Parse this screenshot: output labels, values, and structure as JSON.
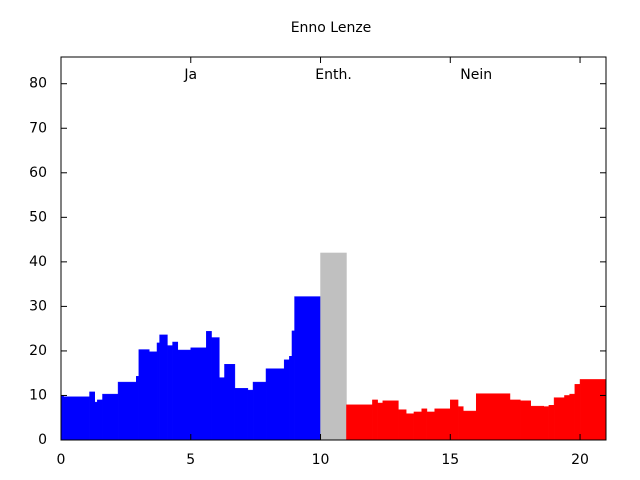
{
  "chart_data": {
    "type": "step-area",
    "title": "Enno Lenze",
    "xlim": [
      0,
      21
    ],
    "ylim": [
      0,
      86
    ],
    "xticks": [
      0,
      5,
      10,
      15,
      20
    ],
    "yticks": [
      0,
      10,
      20,
      30,
      40,
      50,
      60,
      70,
      80
    ],
    "grid": false,
    "series": [
      {
        "name": "Ja",
        "color": "#0000ff",
        "bins": [
          0,
          0.1,
          1.1,
          1.3,
          1.4,
          1.6,
          2.2,
          2.9,
          3.0,
          3.4,
          3.7,
          3.8,
          4.1,
          4.3,
          4.5,
          5.0,
          5.6,
          5.8,
          6.1,
          6.3,
          6.7,
          7.2,
          7.4,
          7.9,
          8.6,
          8.8,
          8.9,
          9.0,
          10
        ],
        "values": [
          10,
          9.7,
          10.8,
          8.5,
          9,
          10.3,
          13,
          14.3,
          20.3,
          19.8,
          21.8,
          23.6,
          21.2,
          22,
          20.2,
          20.7,
          24.4,
          23,
          14,
          17,
          11.6,
          11.2,
          13,
          16,
          18,
          18.8,
          24.5,
          32.2
        ]
      },
      {
        "name": "Enth.",
        "color": "#c0c0c0",
        "bins": [
          10,
          11
        ],
        "values": [
          42
        ]
      },
      {
        "name": "Nein",
        "color": "#ff0000",
        "bins": [
          11,
          12,
          12.2,
          12.4,
          13,
          13.3,
          13.6,
          13.9,
          14.1,
          14.4,
          15,
          15.3,
          15.5,
          16,
          17.3,
          17.7,
          18.1,
          18.6,
          18.8,
          19,
          19.4,
          19.6,
          19.8,
          20,
          21
        ],
        "values": [
          7.9,
          9,
          8.3,
          8.8,
          6.8,
          5.9,
          6.3,
          7,
          6.3,
          7,
          9,
          7.5,
          6.5,
          10.4,
          9,
          8.8,
          7.6,
          7.5,
          7.8,
          9.5,
          10,
          10.3,
          12.5,
          13.6
        ]
      }
    ]
  }
}
